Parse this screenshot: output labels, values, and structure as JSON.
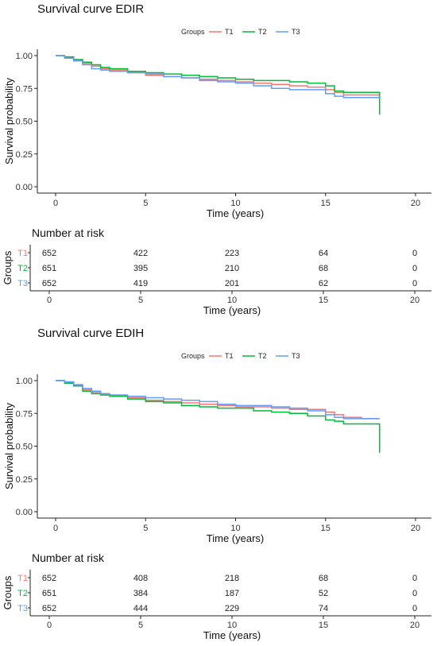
{
  "colors": {
    "T1": "#F8766D",
    "T2": "#00BA38",
    "T3": "#619CFF"
  },
  "chart_data": [
    {
      "type": "line",
      "title": "Survival curve EDIR",
      "xlabel": "Time (years)",
      "ylabel": "Survival probability",
      "xlim": [
        0,
        20
      ],
      "ylim": [
        0,
        1
      ],
      "x_ticks": [
        "0",
        "5",
        "10",
        "15",
        "20"
      ],
      "y_ticks": [
        "0.00",
        "0.25",
        "0.50",
        "0.75",
        "1.00"
      ],
      "grid": false,
      "legend": {
        "title": "Groups",
        "position": "top",
        "entries": [
          "T1",
          "T2",
          "T3"
        ]
      },
      "series": [
        {
          "name": "T1",
          "x": [
            0,
            0.5,
            1,
            1.5,
            2,
            2.5,
            3,
            4,
            5,
            6,
            7,
            8,
            9,
            10,
            11,
            12,
            13,
            14,
            15,
            15.5,
            16,
            17,
            18
          ],
          "y": [
            1.0,
            0.99,
            0.97,
            0.94,
            0.92,
            0.9,
            0.89,
            0.87,
            0.85,
            0.84,
            0.83,
            0.82,
            0.81,
            0.8,
            0.79,
            0.78,
            0.77,
            0.76,
            0.74,
            0.72,
            0.7,
            0.7,
            0.7
          ]
        },
        {
          "name": "T2",
          "x": [
            0,
            0.5,
            1,
            1.5,
            2,
            2.5,
            3,
            4,
            5,
            6,
            7,
            8,
            9,
            10,
            11,
            12,
            13,
            14,
            15,
            15.5,
            16,
            17,
            18,
            18
          ],
          "y": [
            1.0,
            0.99,
            0.97,
            0.95,
            0.93,
            0.91,
            0.9,
            0.88,
            0.87,
            0.86,
            0.85,
            0.84,
            0.83,
            0.82,
            0.81,
            0.81,
            0.8,
            0.79,
            0.77,
            0.73,
            0.72,
            0.72,
            0.72,
            0.55
          ]
        },
        {
          "name": "T3",
          "x": [
            0,
            0.5,
            1,
            1.5,
            2,
            2.5,
            3,
            4,
            5,
            6,
            7,
            8,
            9,
            10,
            11,
            12,
            13,
            14,
            15,
            15.5,
            16,
            17,
            18
          ],
          "y": [
            1.0,
            0.98,
            0.96,
            0.93,
            0.9,
            0.89,
            0.88,
            0.87,
            0.86,
            0.84,
            0.83,
            0.81,
            0.8,
            0.79,
            0.77,
            0.75,
            0.74,
            0.74,
            0.71,
            0.69,
            0.68,
            0.68,
            0.68
          ]
        }
      ],
      "risk_table": {
        "title": "Number at risk",
        "ylabel": "Groups",
        "xlabel": "Time (years)",
        "times": [
          0,
          5,
          10,
          15,
          20
        ],
        "rows": [
          {
            "group": "T1",
            "values": [
              "652",
              "422",
              "223",
              "64",
              "0"
            ]
          },
          {
            "group": "T2",
            "values": [
              "651",
              "395",
              "210",
              "68",
              "0"
            ]
          },
          {
            "group": "T3",
            "values": [
              "652",
              "419",
              "201",
              "62",
              "0"
            ]
          }
        ]
      }
    },
    {
      "type": "line",
      "title": "Survival curve EDIH",
      "xlabel": "Time (years)",
      "ylabel": "Survival probability",
      "xlim": [
        0,
        20
      ],
      "ylim": [
        0,
        1
      ],
      "x_ticks": [
        "0",
        "5",
        "10",
        "15",
        "20"
      ],
      "y_ticks": [
        "0.00",
        "0.25",
        "0.50",
        "0.75",
        "1.00"
      ],
      "grid": false,
      "legend": {
        "title": "Groups",
        "position": "top",
        "entries": [
          "T1",
          "T2",
          "T3"
        ]
      },
      "series": [
        {
          "name": "T1",
          "x": [
            0,
            0.5,
            1,
            1.5,
            2,
            2.5,
            3,
            4,
            5,
            6,
            7,
            8,
            9,
            10,
            11,
            12,
            13,
            14,
            15,
            15.5,
            16,
            17,
            18
          ],
          "y": [
            1.0,
            0.99,
            0.96,
            0.93,
            0.91,
            0.9,
            0.89,
            0.87,
            0.85,
            0.84,
            0.83,
            0.82,
            0.81,
            0.8,
            0.8,
            0.79,
            0.78,
            0.78,
            0.76,
            0.74,
            0.72,
            0.71,
            0.71
          ]
        },
        {
          "name": "T2",
          "x": [
            0,
            0.5,
            1,
            1.5,
            2,
            2.5,
            3,
            4,
            5,
            6,
            7,
            8,
            9,
            10,
            11,
            12,
            13,
            14,
            15,
            15.5,
            16,
            17,
            18,
            18
          ],
          "y": [
            1.0,
            0.98,
            0.96,
            0.92,
            0.9,
            0.89,
            0.88,
            0.86,
            0.84,
            0.83,
            0.81,
            0.8,
            0.79,
            0.79,
            0.77,
            0.76,
            0.75,
            0.73,
            0.7,
            0.69,
            0.67,
            0.67,
            0.67,
            0.45
          ]
        },
        {
          "name": "T3",
          "x": [
            0,
            0.5,
            1,
            1.5,
            2,
            2.5,
            3,
            4,
            5,
            6,
            7,
            8,
            9,
            10,
            11,
            12,
            13,
            14,
            15,
            15.5,
            16,
            17,
            18
          ],
          "y": [
            1.0,
            0.99,
            0.97,
            0.94,
            0.92,
            0.9,
            0.89,
            0.88,
            0.87,
            0.86,
            0.85,
            0.84,
            0.82,
            0.81,
            0.81,
            0.8,
            0.79,
            0.77,
            0.74,
            0.72,
            0.71,
            0.71,
            0.71
          ]
        }
      ],
      "risk_table": {
        "title": "Number at risk",
        "ylabel": "Groups",
        "xlabel": "Time (years)",
        "times": [
          0,
          5,
          10,
          15,
          20
        ],
        "rows": [
          {
            "group": "T1",
            "values": [
              "652",
              "408",
              "218",
              "68",
              "0"
            ]
          },
          {
            "group": "T2",
            "values": [
              "651",
              "384",
              "187",
              "52",
              "0"
            ]
          },
          {
            "group": "T3",
            "values": [
              "652",
              "444",
              "229",
              "74",
              "0"
            ]
          }
        ]
      }
    }
  ]
}
